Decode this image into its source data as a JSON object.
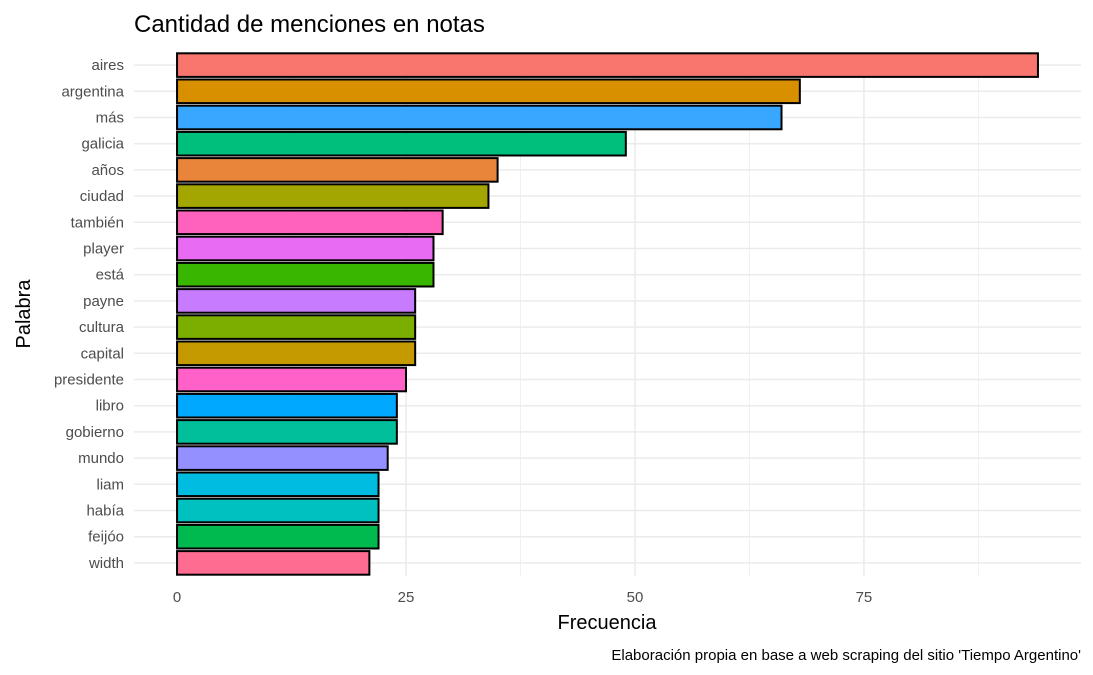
{
  "chart_data": {
    "type": "bar",
    "orientation": "horizontal",
    "title": "Cantidad de menciones en notas",
    "xlabel": "Frecuencia",
    "ylabel": "Palabra",
    "caption": "Elaboración propia en base a web scraping del sitio 'Tiempo Argentino'",
    "categories": [
      "aires",
      "argentina",
      "más",
      "galicia",
      "años",
      "ciudad",
      "también",
      "player",
      "está",
      "payne",
      "cultura",
      "capital",
      "presidente",
      "libro",
      "gobierno",
      "mundo",
      "liam",
      "había",
      "feijóo",
      "width"
    ],
    "values": [
      94,
      68,
      66,
      49,
      35,
      34,
      29,
      28,
      28,
      26,
      26,
      26,
      25,
      24,
      24,
      23,
      22,
      22,
      22,
      21
    ],
    "colors": [
      "#F8766D",
      "#D89000",
      "#39A6FF",
      "#00BF7D",
      "#E8853A",
      "#A3A500",
      "#FF62BC",
      "#E76BF3",
      "#39B600",
      "#C77CFF",
      "#7CAE00",
      "#C49A00",
      "#FF61C9",
      "#00A9FF",
      "#00BF9A",
      "#9590FF",
      "#00BCE0",
      "#00C0C0",
      "#00B94F",
      "#FF6C91"
    ],
    "x_ticks": [
      0,
      25,
      50,
      75
    ],
    "xlim": [
      -4.7,
      98.7
    ],
    "grid": true,
    "legend": "none"
  }
}
